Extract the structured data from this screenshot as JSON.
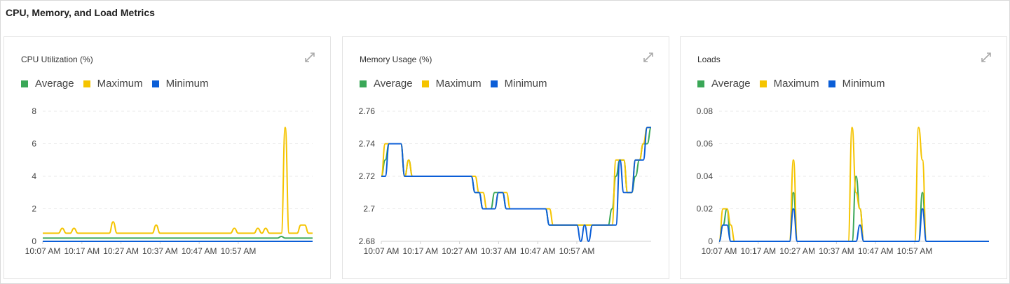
{
  "section_title": "CPU, Memory, and Load Metrics",
  "legend": [
    {
      "label": "Average",
      "color": "#3aa757"
    },
    {
      "label": "Maximum",
      "color": "#f5c400"
    },
    {
      "label": "Minimum",
      "color": "#0b5ed7"
    }
  ],
  "chart_data": [
    {
      "type": "line",
      "title": "CPU Utilization (%)",
      "xticks": [
        "10:07 AM",
        "10:17 AM",
        "10:27 AM",
        "10:37 AM",
        "10:47 AM",
        "10:57 AM"
      ],
      "yticks": [
        "0",
        "2",
        "4",
        "6",
        "8"
      ],
      "ylim": [
        0,
        8
      ],
      "x": [
        0,
        1,
        2,
        3,
        4,
        5,
        6,
        7,
        8,
        9,
        10,
        11,
        12,
        13,
        14,
        15,
        16,
        17,
        18,
        19,
        20,
        21,
        22,
        23,
        24,
        25,
        26,
        27,
        28,
        29,
        30,
        31,
        32,
        33,
        34,
        35,
        36,
        37,
        38,
        39,
        40,
        41,
        42,
        43,
        44,
        45,
        46,
        47,
        48,
        49,
        50,
        51,
        52,
        53,
        54,
        55,
        56,
        57,
        58,
        59,
        60,
        61,
        62,
        63,
        64,
        65,
        66,
        67,
        68,
        69
      ],
      "series": [
        {
          "name": "Average",
          "values": [
            0.2,
            0.2,
            0.2,
            0.2,
            0.2,
            0.2,
            0.2,
            0.2,
            0.2,
            0.2,
            0.2,
            0.2,
            0.2,
            0.2,
            0.2,
            0.2,
            0.2,
            0.2,
            0.2,
            0.2,
            0.2,
            0.2,
            0.2,
            0.2,
            0.2,
            0.2,
            0.2,
            0.2,
            0.2,
            0.2,
            0.2,
            0.2,
            0.2,
            0.2,
            0.2,
            0.2,
            0.2,
            0.2,
            0.2,
            0.2,
            0.2,
            0.2,
            0.2,
            0.2,
            0.2,
            0.2,
            0.2,
            0.2,
            0.2,
            0.2,
            0.2,
            0.2,
            0.2,
            0.2,
            0.2,
            0.2,
            0.2,
            0.2,
            0.2,
            0.2,
            0.2,
            0.3,
            0.2,
            0.2,
            0.2,
            0.2,
            0.2,
            0.2,
            0.2,
            0.2
          ]
        },
        {
          "name": "Maximum",
          "values": [
            0.5,
            0.5,
            0.5,
            0.5,
            0.5,
            0.8,
            0.5,
            0.5,
            0.8,
            0.5,
            0.5,
            0.5,
            0.5,
            0.5,
            0.5,
            0.5,
            0.5,
            0.5,
            1.2,
            0.5,
            0.5,
            0.5,
            0.5,
            0.5,
            0.5,
            0.5,
            0.5,
            0.5,
            0.5,
            1.0,
            0.5,
            0.5,
            0.5,
            0.5,
            0.5,
            0.5,
            0.5,
            0.5,
            0.5,
            0.5,
            0.5,
            0.5,
            0.5,
            0.5,
            0.5,
            0.5,
            0.5,
            0.5,
            0.5,
            0.8,
            0.5,
            0.5,
            0.5,
            0.5,
            0.5,
            0.8,
            0.5,
            0.8,
            0.5,
            0.5,
            0.5,
            0.5,
            7.0,
            0.5,
            0.5,
            0.5,
            1.0,
            1.0,
            0.5,
            0.5
          ]
        },
        {
          "name": "Minimum",
          "values": [
            0,
            0,
            0,
            0,
            0,
            0,
            0,
            0,
            0,
            0,
            0,
            0,
            0,
            0,
            0,
            0,
            0,
            0,
            0,
            0,
            0,
            0,
            0,
            0,
            0,
            0,
            0,
            0,
            0,
            0,
            0,
            0,
            0,
            0,
            0,
            0,
            0,
            0,
            0,
            0,
            0,
            0,
            0,
            0,
            0,
            0,
            0,
            0,
            0,
            0,
            0,
            0,
            0,
            0,
            0,
            0,
            0,
            0,
            0,
            0,
            0,
            0,
            0,
            0,
            0,
            0,
            0,
            0,
            0,
            0
          ]
        }
      ]
    },
    {
      "type": "line",
      "title": "Memory Usage (%)",
      "xticks": [
        "10:07 AM",
        "10:17 AM",
        "10:27 AM",
        "10:37 AM",
        "10:47 AM",
        "10:57 AM"
      ],
      "yticks": [
        "2.68",
        "2.7",
        "2.72",
        "2.74",
        "2.76"
      ],
      "ylim": [
        2.68,
        2.76
      ],
      "x": [
        0,
        1,
        2,
        3,
        4,
        5,
        6,
        7,
        8,
        9,
        10,
        11,
        12,
        13,
        14,
        15,
        16,
        17,
        18,
        19,
        20,
        21,
        22,
        23,
        24,
        25,
        26,
        27,
        28,
        29,
        30,
        31,
        32,
        33,
        34,
        35,
        36,
        37,
        38,
        39,
        40,
        41,
        42,
        43,
        44,
        45,
        46,
        47,
        48,
        49,
        50,
        51,
        52,
        53,
        54,
        55,
        56,
        57,
        58,
        59,
        60,
        61,
        62,
        63,
        64,
        65,
        66,
        67,
        68,
        69
      ],
      "series": [
        {
          "name": "Average",
          "values": [
            2.72,
            2.73,
            2.74,
            2.74,
            2.74,
            2.74,
            2.72,
            2.73,
            2.72,
            2.72,
            2.72,
            2.72,
            2.72,
            2.72,
            2.72,
            2.72,
            2.72,
            2.72,
            2.72,
            2.72,
            2.72,
            2.72,
            2.72,
            2.72,
            2.71,
            2.71,
            2.7,
            2.7,
            2.7,
            2.71,
            2.71,
            2.71,
            2.7,
            2.7,
            2.7,
            2.7,
            2.7,
            2.7,
            2.7,
            2.7,
            2.7,
            2.7,
            2.7,
            2.69,
            2.69,
            2.69,
            2.69,
            2.69,
            2.69,
            2.69,
            2.69,
            2.69,
            2.69,
            2.69,
            2.69,
            2.69,
            2.69,
            2.69,
            2.69,
            2.7,
            2.72,
            2.73,
            2.73,
            2.71,
            2.71,
            2.72,
            2.73,
            2.74,
            2.74,
            2.75
          ]
        },
        {
          "name": "Maximum",
          "values": [
            2.72,
            2.74,
            2.74,
            2.74,
            2.74,
            2.74,
            2.72,
            2.73,
            2.72,
            2.72,
            2.72,
            2.72,
            2.72,
            2.72,
            2.72,
            2.72,
            2.72,
            2.72,
            2.72,
            2.72,
            2.72,
            2.72,
            2.72,
            2.72,
            2.72,
            2.71,
            2.71,
            2.7,
            2.7,
            2.7,
            2.71,
            2.71,
            2.71,
            2.7,
            2.7,
            2.7,
            2.7,
            2.7,
            2.7,
            2.7,
            2.7,
            2.7,
            2.7,
            2.7,
            2.69,
            2.69,
            2.69,
            2.69,
            2.69,
            2.69,
            2.69,
            2.69,
            2.69,
            2.69,
            2.69,
            2.69,
            2.69,
            2.69,
            2.69,
            2.69,
            2.73,
            2.73,
            2.73,
            2.71,
            2.71,
            2.73,
            2.73,
            2.74,
            2.75,
            2.75
          ]
        },
        {
          "name": "Minimum",
          "values": [
            2.72,
            2.72,
            2.74,
            2.74,
            2.74,
            2.74,
            2.72,
            2.72,
            2.72,
            2.72,
            2.72,
            2.72,
            2.72,
            2.72,
            2.72,
            2.72,
            2.72,
            2.72,
            2.72,
            2.72,
            2.72,
            2.72,
            2.72,
            2.72,
            2.71,
            2.71,
            2.7,
            2.7,
            2.7,
            2.7,
            2.71,
            2.71,
            2.7,
            2.7,
            2.7,
            2.7,
            2.7,
            2.7,
            2.7,
            2.7,
            2.7,
            2.7,
            2.7,
            2.69,
            2.69,
            2.69,
            2.69,
            2.69,
            2.69,
            2.69,
            2.69,
            2.68,
            2.69,
            2.68,
            2.69,
            2.69,
            2.69,
            2.69,
            2.69,
            2.69,
            2.69,
            2.73,
            2.71,
            2.71,
            2.71,
            2.73,
            2.73,
            2.73,
            2.75,
            2.75
          ]
        }
      ]
    },
    {
      "type": "line",
      "title": "Loads",
      "xticks": [
        "10:07 AM",
        "10:17 AM",
        "10:27 AM",
        "10:37 AM",
        "10:47 AM",
        "10:57 AM"
      ],
      "yticks": [
        "0",
        "0.02",
        "0.04",
        "0.06",
        "0.08"
      ],
      "ylim": [
        0,
        0.08
      ],
      "x": [
        0,
        1,
        2,
        3,
        4,
        5,
        6,
        7,
        8,
        9,
        10,
        11,
        12,
        13,
        14,
        15,
        16,
        17,
        18,
        19,
        20,
        21,
        22,
        23,
        24,
        25,
        26,
        27,
        28,
        29,
        30,
        31,
        32,
        33,
        34,
        35,
        36,
        37,
        38,
        39,
        40,
        41,
        42,
        43,
        44,
        45,
        46,
        47,
        48,
        49,
        50,
        51,
        52,
        53,
        54,
        55,
        56,
        57,
        58,
        59,
        60,
        61,
        62,
        63,
        64,
        65,
        66,
        67,
        68,
        69
      ],
      "series": [
        {
          "name": "Average",
          "values": [
            0,
            0.01,
            0.02,
            0,
            0,
            0,
            0,
            0,
            0,
            0,
            0,
            0,
            0,
            0,
            0,
            0,
            0,
            0,
            0,
            0.03,
            0,
            0,
            0,
            0,
            0,
            0,
            0,
            0,
            0,
            0,
            0,
            0,
            0,
            0,
            0,
            0.04,
            0.02,
            0,
            0,
            0,
            0,
            0,
            0,
            0,
            0,
            0,
            0,
            0,
            0,
            0,
            0,
            0,
            0.03,
            0,
            0,
            0,
            0,
            0,
            0,
            0,
            0,
            0,
            0,
            0,
            0,
            0,
            0,
            0,
            0,
            0
          ]
        },
        {
          "name": "Maximum",
          "values": [
            0,
            0.02,
            0.02,
            0.01,
            0,
            0,
            0,
            0,
            0,
            0,
            0,
            0,
            0,
            0,
            0,
            0,
            0,
            0,
            0,
            0.05,
            0,
            0,
            0,
            0,
            0,
            0,
            0,
            0,
            0,
            0,
            0,
            0,
            0,
            0,
            0.07,
            0.03,
            0.02,
            0,
            0,
            0,
            0,
            0,
            0,
            0,
            0,
            0,
            0,
            0,
            0,
            0,
            0,
            0.07,
            0.05,
            0,
            0,
            0,
            0,
            0,
            0,
            0,
            0,
            0,
            0,
            0,
            0,
            0,
            0,
            0,
            0,
            0
          ]
        },
        {
          "name": "Minimum",
          "values": [
            0,
            0.01,
            0.01,
            0,
            0,
            0,
            0,
            0,
            0,
            0,
            0,
            0,
            0,
            0,
            0,
            0,
            0,
            0,
            0,
            0.02,
            0,
            0,
            0,
            0,
            0,
            0,
            0,
            0,
            0,
            0,
            0,
            0,
            0,
            0,
            0,
            0,
            0.01,
            0,
            0,
            0,
            0,
            0,
            0,
            0,
            0,
            0,
            0,
            0,
            0,
            0,
            0,
            0,
            0.02,
            0,
            0,
            0,
            0,
            0,
            0,
            0,
            0,
            0,
            0,
            0,
            0,
            0,
            0,
            0,
            0,
            0
          ]
        }
      ]
    }
  ]
}
